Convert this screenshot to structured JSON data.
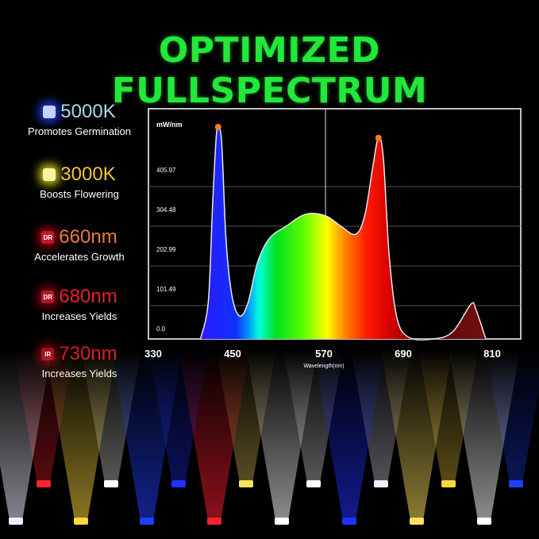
{
  "title": "OPTIMIZED FULLSPECTRUM",
  "legend": [
    {
      "label": "5000K",
      "desc": "Promotes Germination",
      "chip": "",
      "chip_color": "#c8d2ff",
      "text_color": "#a9d8ee",
      "glow": "#2040ff"
    },
    {
      "label": "3000K",
      "desc": "Boosts Flowering",
      "chip": "",
      "chip_color": "#fff3a0",
      "text_color": "#f2c73a",
      "glow": "#e0e020"
    },
    {
      "label": "660nm",
      "desc": "Accelerates Growth",
      "chip": "DR",
      "chip_color": "#c0182a",
      "text_color": "#ee7a3a",
      "glow": "#a00010"
    },
    {
      "label": "680nm",
      "desc": "Increases Yields",
      "chip": "DR",
      "chip_color": "#b0182a",
      "text_color": "#e8202a",
      "glow": "#900010"
    },
    {
      "label": "730nm",
      "desc": "Increases Yields",
      "chip": "IR",
      "chip_color": "#a0101a",
      "text_color": "#d81a22",
      "glow": "#800010"
    }
  ],
  "chart_data": {
    "type": "area",
    "ylabel": "mW/nm",
    "xlabel": "Wavelength(nm)",
    "xlim": [
      330,
      810
    ],
    "ylim": [
      0,
      560
    ],
    "x_ticks": [
      330,
      450,
      570,
      690,
      810
    ],
    "y_ticks": [
      "0.0",
      "101.49",
      "202.99",
      "304.48",
      "405.97"
    ],
    "y_tick_values": [
      0,
      101.49,
      202.99,
      304.48,
      405.97
    ],
    "grid": true,
    "cursor_x": 574,
    "peak_markers": [
      {
        "x": 422,
        "y": 542
      },
      {
        "x": 649,
        "y": 514
      }
    ],
    "marker_color": "#ff7a1a",
    "x": [
      397,
      408,
      414,
      419,
      422,
      427,
      433,
      441,
      452,
      464,
      478,
      495,
      518,
      546,
      574,
      596,
      617,
      630,
      641,
      649,
      656,
      664,
      675,
      692,
      726,
      754,
      780,
      787,
      801
    ],
    "y": [
      0,
      95,
      339,
      511,
      542,
      501,
      258,
      116,
      59,
      91,
      197,
      258,
      288,
      319,
      315,
      288,
      268,
      319,
      441,
      514,
      461,
      217,
      55,
      4,
      0,
      18,
      89,
      75,
      0
    ]
  }
}
